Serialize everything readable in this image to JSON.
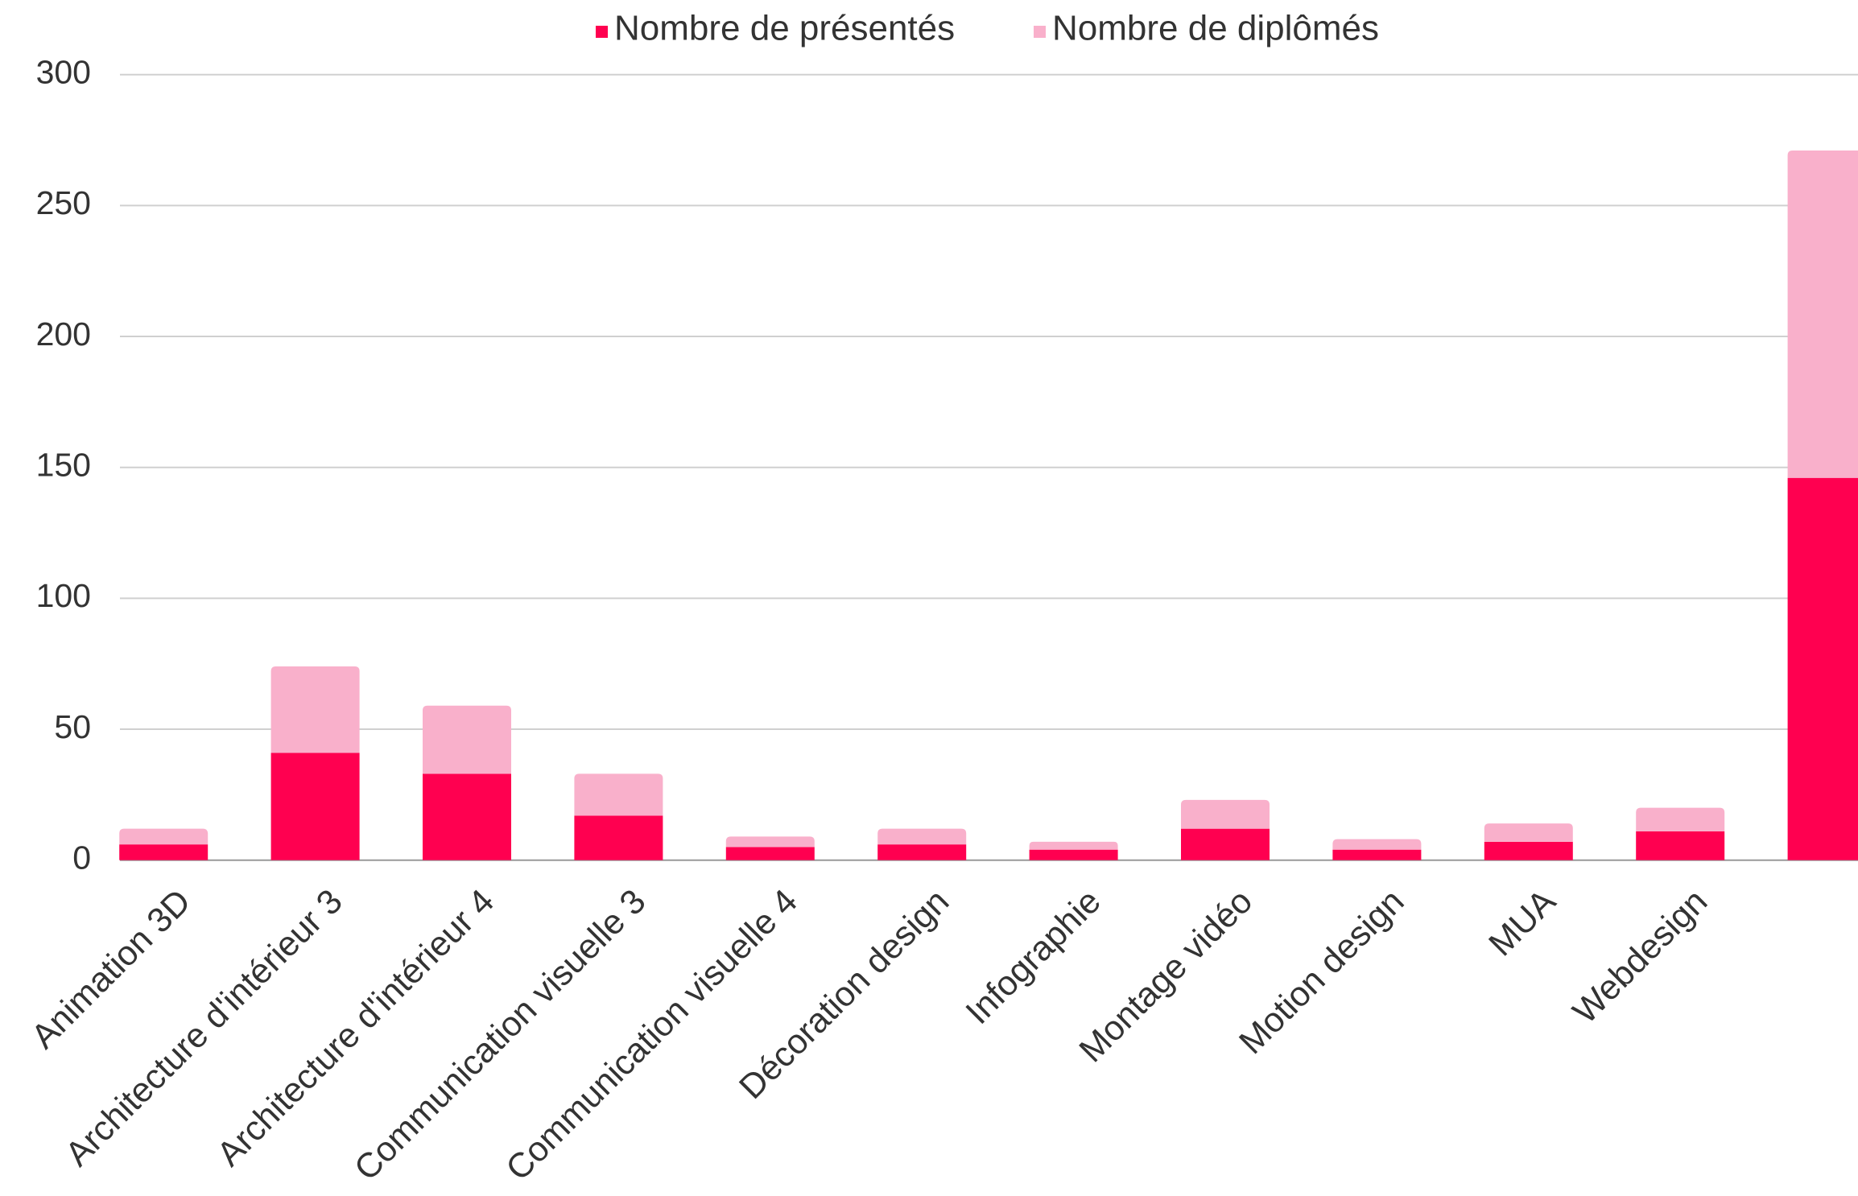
{
  "chart_data": {
    "type": "bar",
    "stacked": true,
    "categories": [
      "Animation 3D",
      "Architecture d'intérieur 3",
      "Architecture d'intérieur 4",
      "Communication visuelle 3",
      "Communication visuelle 4",
      "Décoration design",
      "Infographie",
      "Montage vidéo",
      "Motion design",
      "MUA",
      "Webdesign",
      null
    ],
    "series": [
      {
        "name": "Nombre de présentés",
        "color": "#ff0050",
        "values": [
          6,
          41,
          33,
          17,
          5,
          6,
          4,
          12,
          4,
          7,
          11,
          146
        ]
      },
      {
        "name": "Nombre de diplômés",
        "color": "#f9b0cb",
        "values": [
          6,
          33,
          26,
          16,
          4,
          6,
          3,
          11,
          4,
          7,
          9,
          125
        ]
      }
    ],
    "ylim": [
      0,
      300
    ],
    "yticks": [
      0,
      50,
      100,
      150,
      200,
      250,
      300
    ],
    "grid": true,
    "legend": "top"
  }
}
